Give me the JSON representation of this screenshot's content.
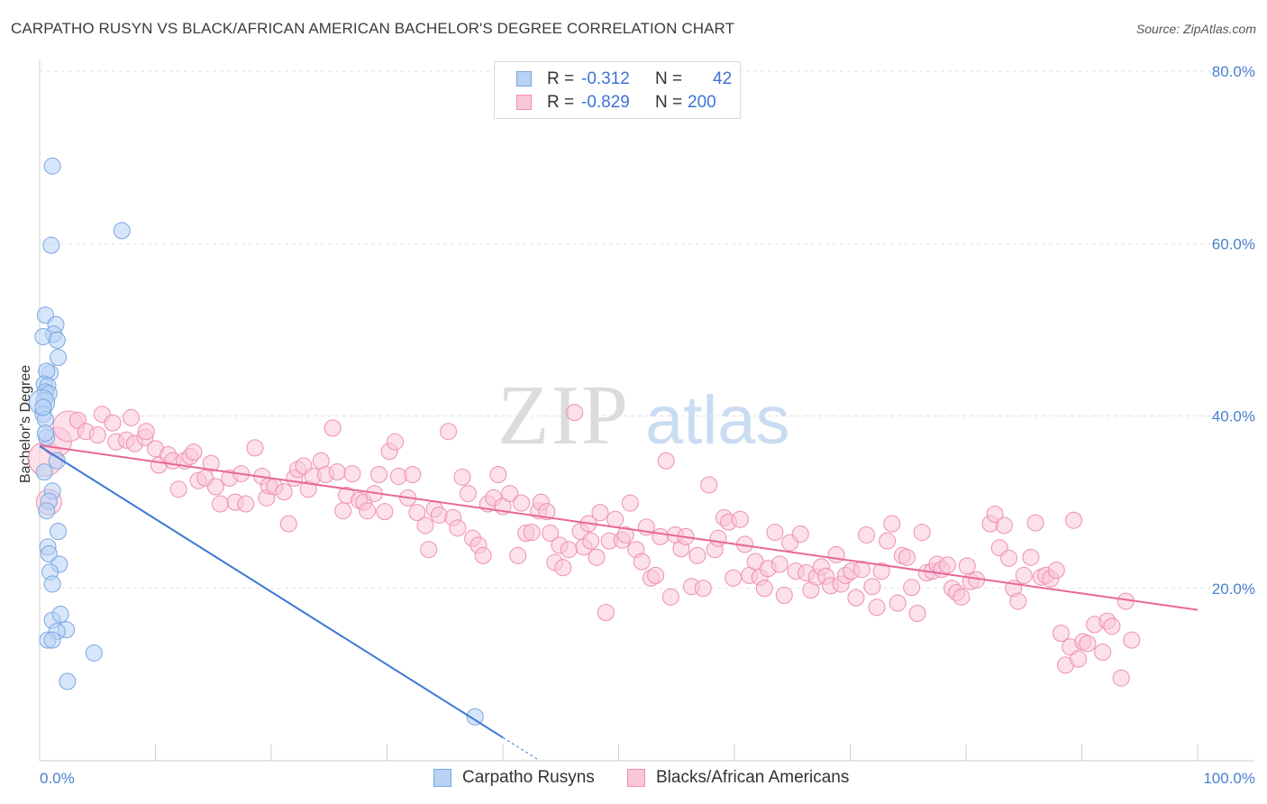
{
  "title": "CARPATHO RUSYN VS BLACK/AFRICAN AMERICAN BACHELOR'S DEGREE CORRELATION CHART",
  "source": "Source: ZipAtlas.com",
  "watermark": {
    "zip": "ZIP",
    "atlas": "atlas"
  },
  "legend": {
    "r_label": "R =",
    "n_label": "N =",
    "series": [
      {
        "r": "-0.312",
        "n": "42",
        "fill": "#b7d2f5",
        "stroke": "#7aa6e0"
      },
      {
        "r": "-0.829",
        "n": "200",
        "fill": "#f9c7d8",
        "stroke": "#ee8fb0"
      }
    ]
  },
  "bottom_legend": [
    "Carpatho Rusyns",
    "Blacks/African Americans"
  ],
  "chart_data": {
    "type": "scatter",
    "ylabel": "Bachelor's Degree",
    "xlim": [
      0,
      100
    ],
    "ylim": [
      0,
      80
    ],
    "x_tick_labels": [
      "0.0%",
      "100.0%"
    ],
    "y_tick_labels": [
      "20.0%",
      "40.0%",
      "60.0%",
      "80.0%"
    ],
    "y_ticks": [
      20,
      40,
      60,
      80
    ],
    "grid": true,
    "colors": {
      "blue": "#3a78d4",
      "pink": "#e8679a"
    },
    "series": [
      {
        "name": "Carpatho Rusyns",
        "trend": {
          "x0": 0,
          "y0": 36.5,
          "x1": 40,
          "y1": 2.7
        },
        "points": [
          [
            1.1,
            69
          ],
          [
            1.0,
            59.8
          ],
          [
            7.1,
            61.5
          ],
          [
            0.5,
            51.7
          ],
          [
            1.4,
            50.6
          ],
          [
            1.2,
            49.5
          ],
          [
            0.3,
            49.2
          ],
          [
            1.5,
            48.8
          ],
          [
            1.6,
            46.8
          ],
          [
            0.9,
            45.0
          ],
          [
            0.6,
            45.2
          ],
          [
            0.4,
            43.7
          ],
          [
            0.7,
            43.5
          ],
          [
            0.5,
            42.8
          ],
          [
            0.8,
            42.6
          ],
          [
            0.4,
            41.8
          ],
          [
            0.2,
            41.6
          ],
          [
            0.3,
            40.2
          ],
          [
            0.5,
            39.6
          ],
          [
            0.6,
            37.5
          ],
          [
            1.5,
            34.8
          ],
          [
            1.1,
            31.3
          ],
          [
            0.8,
            30.1
          ],
          [
            1.6,
            26.6
          ],
          [
            0.7,
            24.8
          ],
          [
            0.8,
            24.0
          ],
          [
            1.7,
            22.8
          ],
          [
            0.9,
            21.9
          ],
          [
            1.1,
            20.5
          ],
          [
            1.1,
            16.3
          ],
          [
            1.8,
            17.0
          ],
          [
            2.3,
            15.2
          ],
          [
            1.5,
            15.0
          ],
          [
            0.7,
            14.0
          ],
          [
            1.1,
            14.0
          ],
          [
            4.7,
            12.5
          ],
          [
            2.4,
            9.2
          ],
          [
            37.6,
            5.1
          ],
          [
            0.3,
            41.0
          ],
          [
            0.5,
            38.0
          ],
          [
            0.4,
            33.5
          ],
          [
            0.6,
            29.0
          ]
        ]
      },
      {
        "name": "Blacks/African Americans",
        "trend": {
          "x0": 0,
          "y0": 36.6,
          "x1": 100,
          "y1": 17.5
        },
        "points": [
          [
            0.5,
            35
          ],
          [
            0.8,
            30
          ],
          [
            1.5,
            37
          ],
          [
            2.5,
            38.8
          ],
          [
            3.3,
            39.5
          ],
          [
            4.0,
            38.2
          ],
          [
            5.0,
            37.8
          ],
          [
            5.4,
            40.2
          ],
          [
            6.3,
            39.2
          ],
          [
            6.6,
            37.0
          ],
          [
            7.5,
            37.2
          ],
          [
            7.9,
            39.8
          ],
          [
            8.2,
            36.8
          ],
          [
            9.1,
            37.5
          ],
          [
            9.2,
            38.2
          ],
          [
            10.0,
            36.2
          ],
          [
            10.3,
            34.3
          ],
          [
            11.1,
            35.5
          ],
          [
            11.5,
            34.8
          ],
          [
            12.0,
            31.5
          ],
          [
            12.5,
            34.8
          ],
          [
            13.0,
            35.3
          ],
          [
            13.3,
            35.8
          ],
          [
            13.7,
            32.5
          ],
          [
            14.3,
            32.8
          ],
          [
            14.8,
            34.5
          ],
          [
            15.2,
            31.8
          ],
          [
            15.6,
            29.8
          ],
          [
            16.4,
            32.8
          ],
          [
            16.9,
            30.0
          ],
          [
            17.4,
            33.3
          ],
          [
            17.8,
            29.8
          ],
          [
            18.6,
            36.3
          ],
          [
            19.2,
            33.0
          ],
          [
            19.6,
            30.5
          ],
          [
            19.8,
            31.9
          ],
          [
            20.3,
            31.8
          ],
          [
            21.1,
            31.2
          ],
          [
            21.5,
            27.5
          ],
          [
            22.0,
            32.8
          ],
          [
            22.3,
            33.8
          ],
          [
            22.8,
            34.2
          ],
          [
            23.2,
            31.5
          ],
          [
            23.6,
            33.0
          ],
          [
            24.3,
            34.8
          ],
          [
            24.7,
            33.2
          ],
          [
            25.3,
            38.6
          ],
          [
            25.7,
            33.5
          ],
          [
            26.2,
            29.0
          ],
          [
            26.5,
            30.8
          ],
          [
            27.0,
            33.3
          ],
          [
            27.6,
            30.2
          ],
          [
            28.0,
            30.0
          ],
          [
            28.3,
            29.0
          ],
          [
            28.9,
            31.0
          ],
          [
            29.3,
            33.2
          ],
          [
            29.8,
            28.9
          ],
          [
            30.2,
            35.9
          ],
          [
            30.7,
            37.0
          ],
          [
            31.0,
            33.0
          ],
          [
            31.8,
            30.5
          ],
          [
            32.2,
            33.2
          ],
          [
            32.6,
            28.8
          ],
          [
            33.3,
            27.3
          ],
          [
            33.6,
            24.5
          ],
          [
            34.1,
            29.2
          ],
          [
            34.5,
            28.5
          ],
          [
            35.3,
            38.2
          ],
          [
            35.7,
            28.2
          ],
          [
            36.1,
            27.0
          ],
          [
            36.5,
            32.9
          ],
          [
            37.0,
            31.0
          ],
          [
            37.4,
            25.8
          ],
          [
            37.9,
            25.0
          ],
          [
            38.3,
            23.8
          ],
          [
            38.7,
            29.8
          ],
          [
            39.2,
            30.5
          ],
          [
            39.6,
            33.2
          ],
          [
            40.0,
            29.5
          ],
          [
            40.6,
            31.0
          ],
          [
            41.3,
            23.8
          ],
          [
            41.6,
            29.9
          ],
          [
            42.0,
            26.4
          ],
          [
            42.5,
            26.5
          ],
          [
            43.1,
            29.0
          ],
          [
            43.3,
            30.0
          ],
          [
            43.8,
            28.9
          ],
          [
            44.1,
            26.4
          ],
          [
            44.5,
            23.0
          ],
          [
            44.9,
            25.0
          ],
          [
            45.2,
            22.4
          ],
          [
            45.7,
            24.5
          ],
          [
            46.2,
            40.4
          ],
          [
            46.7,
            26.6
          ],
          [
            47.0,
            24.8
          ],
          [
            47.4,
            27.5
          ],
          [
            47.6,
            25.5
          ],
          [
            48.1,
            23.6
          ],
          [
            48.4,
            28.8
          ],
          [
            48.9,
            17.2
          ],
          [
            49.2,
            25.5
          ],
          [
            49.7,
            28.0
          ],
          [
            50.3,
            25.6
          ],
          [
            50.6,
            26.2
          ],
          [
            51.0,
            29.9
          ],
          [
            51.5,
            24.5
          ],
          [
            52.0,
            23.1
          ],
          [
            52.4,
            27.1
          ],
          [
            52.8,
            21.2
          ],
          [
            53.2,
            21.5
          ],
          [
            53.6,
            26.0
          ],
          [
            54.1,
            34.8
          ],
          [
            54.5,
            19.0
          ],
          [
            54.9,
            26.2
          ],
          [
            55.4,
            24.6
          ],
          [
            55.8,
            26.0
          ],
          [
            56.3,
            20.2
          ],
          [
            56.8,
            23.8
          ],
          [
            57.3,
            20.0
          ],
          [
            57.8,
            32.0
          ],
          [
            58.3,
            24.5
          ],
          [
            58.6,
            25.8
          ],
          [
            59.1,
            28.2
          ],
          [
            59.5,
            27.7
          ],
          [
            59.9,
            21.2
          ],
          [
            60.5,
            28.0
          ],
          [
            60.9,
            25.1
          ],
          [
            61.3,
            21.5
          ],
          [
            61.8,
            23.1
          ],
          [
            62.2,
            21.3
          ],
          [
            62.6,
            20.0
          ],
          [
            62.9,
            22.3
          ],
          [
            63.5,
            26.5
          ],
          [
            63.9,
            22.8
          ],
          [
            64.3,
            19.2
          ],
          [
            64.8,
            25.3
          ],
          [
            65.3,
            22.0
          ],
          [
            65.7,
            26.3
          ],
          [
            66.2,
            21.8
          ],
          [
            66.6,
            19.8
          ],
          [
            67.1,
            21.3
          ],
          [
            67.5,
            22.5
          ],
          [
            67.9,
            21.4
          ],
          [
            68.3,
            20.3
          ],
          [
            68.8,
            23.9
          ],
          [
            69.2,
            20.5
          ],
          [
            69.6,
            21.5
          ],
          [
            70.1,
            22.0
          ],
          [
            70.5,
            18.9
          ],
          [
            71.0,
            22.2
          ],
          [
            71.4,
            26.2
          ],
          [
            71.9,
            20.2
          ],
          [
            72.3,
            17.8
          ],
          [
            72.7,
            22.0
          ],
          [
            73.2,
            25.5
          ],
          [
            73.6,
            27.5
          ],
          [
            74.1,
            18.3
          ],
          [
            74.5,
            23.8
          ],
          [
            74.9,
            23.6
          ],
          [
            75.3,
            20.1
          ],
          [
            75.8,
            17.1
          ],
          [
            76.2,
            26.5
          ],
          [
            76.6,
            21.8
          ],
          [
            77.1,
            22.0
          ],
          [
            77.5,
            22.8
          ],
          [
            77.9,
            22.2
          ],
          [
            78.4,
            22.7
          ],
          [
            78.8,
            20.0
          ],
          [
            79.2,
            19.5
          ],
          [
            79.6,
            19.0
          ],
          [
            80.1,
            22.6
          ],
          [
            80.4,
            20.8
          ],
          [
            80.9,
            21.0
          ],
          [
            82.1,
            27.5
          ],
          [
            82.5,
            28.6
          ],
          [
            82.9,
            24.7
          ],
          [
            83.3,
            27.3
          ],
          [
            83.7,
            23.5
          ],
          [
            84.1,
            20.0
          ],
          [
            84.5,
            18.5
          ],
          [
            85.0,
            21.5
          ],
          [
            85.6,
            23.6
          ],
          [
            86.0,
            27.6
          ],
          [
            86.5,
            21.3
          ],
          [
            86.9,
            21.5
          ],
          [
            87.3,
            21.1
          ],
          [
            87.8,
            22.1
          ],
          [
            88.2,
            14.8
          ],
          [
            88.6,
            11.1
          ],
          [
            89.0,
            13.2
          ],
          [
            89.3,
            27.9
          ],
          [
            89.7,
            11.8
          ],
          [
            90.1,
            13.8
          ],
          [
            90.5,
            13.6
          ],
          [
            91.1,
            15.8
          ],
          [
            91.8,
            12.6
          ],
          [
            92.2,
            16.2
          ],
          [
            92.6,
            15.6
          ],
          [
            93.4,
            9.6
          ],
          [
            93.8,
            18.5
          ],
          [
            94.3,
            14.0
          ]
        ]
      }
    ]
  }
}
